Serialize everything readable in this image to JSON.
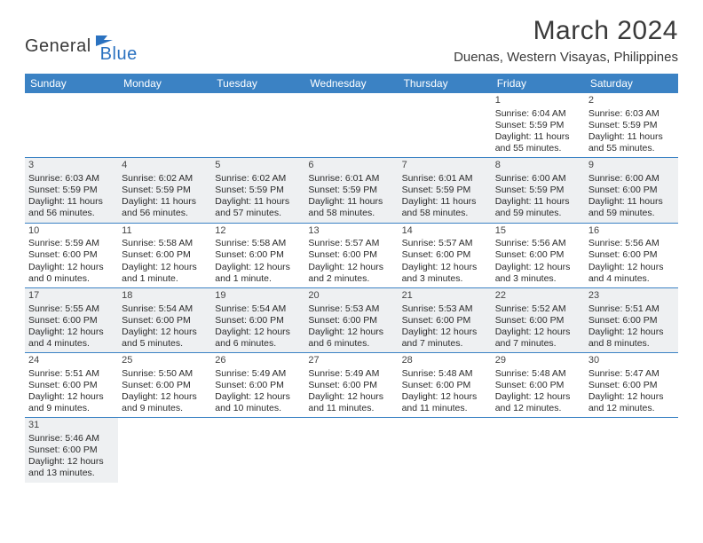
{
  "logo": {
    "part1": "General",
    "part2": "Blue",
    "icon_color": "#2b72c0",
    "text_color": "#3a3a3a"
  },
  "title": "March 2024",
  "location": "Duenas, Western Visayas, Philippines",
  "header_bg": "#3b82c4",
  "header_fg": "#ffffff",
  "row_divider": "#3b82c4",
  "shade_bg": "#eef0f2",
  "weekdays": [
    "Sunday",
    "Monday",
    "Tuesday",
    "Wednesday",
    "Thursday",
    "Friday",
    "Saturday"
  ],
  "weeks": [
    {
      "shaded": false,
      "days": [
        null,
        null,
        null,
        null,
        null,
        {
          "n": "1",
          "sunrise": "Sunrise: 6:04 AM",
          "sunset": "Sunset: 5:59 PM",
          "day1": "Daylight: 11 hours",
          "day2": "and 55 minutes."
        },
        {
          "n": "2",
          "sunrise": "Sunrise: 6:03 AM",
          "sunset": "Sunset: 5:59 PM",
          "day1": "Daylight: 11 hours",
          "day2": "and 55 minutes."
        }
      ]
    },
    {
      "shaded": true,
      "days": [
        {
          "n": "3",
          "sunrise": "Sunrise: 6:03 AM",
          "sunset": "Sunset: 5:59 PM",
          "day1": "Daylight: 11 hours",
          "day2": "and 56 minutes."
        },
        {
          "n": "4",
          "sunrise": "Sunrise: 6:02 AM",
          "sunset": "Sunset: 5:59 PM",
          "day1": "Daylight: 11 hours",
          "day2": "and 56 minutes."
        },
        {
          "n": "5",
          "sunrise": "Sunrise: 6:02 AM",
          "sunset": "Sunset: 5:59 PM",
          "day1": "Daylight: 11 hours",
          "day2": "and 57 minutes."
        },
        {
          "n": "6",
          "sunrise": "Sunrise: 6:01 AM",
          "sunset": "Sunset: 5:59 PM",
          "day1": "Daylight: 11 hours",
          "day2": "and 58 minutes."
        },
        {
          "n": "7",
          "sunrise": "Sunrise: 6:01 AM",
          "sunset": "Sunset: 5:59 PM",
          "day1": "Daylight: 11 hours",
          "day2": "and 58 minutes."
        },
        {
          "n": "8",
          "sunrise": "Sunrise: 6:00 AM",
          "sunset": "Sunset: 5:59 PM",
          "day1": "Daylight: 11 hours",
          "day2": "and 59 minutes."
        },
        {
          "n": "9",
          "sunrise": "Sunrise: 6:00 AM",
          "sunset": "Sunset: 6:00 PM",
          "day1": "Daylight: 11 hours",
          "day2": "and 59 minutes."
        }
      ]
    },
    {
      "shaded": false,
      "days": [
        {
          "n": "10",
          "sunrise": "Sunrise: 5:59 AM",
          "sunset": "Sunset: 6:00 PM",
          "day1": "Daylight: 12 hours",
          "day2": "and 0 minutes."
        },
        {
          "n": "11",
          "sunrise": "Sunrise: 5:58 AM",
          "sunset": "Sunset: 6:00 PM",
          "day1": "Daylight: 12 hours",
          "day2": "and 1 minute."
        },
        {
          "n": "12",
          "sunrise": "Sunrise: 5:58 AM",
          "sunset": "Sunset: 6:00 PM",
          "day1": "Daylight: 12 hours",
          "day2": "and 1 minute."
        },
        {
          "n": "13",
          "sunrise": "Sunrise: 5:57 AM",
          "sunset": "Sunset: 6:00 PM",
          "day1": "Daylight: 12 hours",
          "day2": "and 2 minutes."
        },
        {
          "n": "14",
          "sunrise": "Sunrise: 5:57 AM",
          "sunset": "Sunset: 6:00 PM",
          "day1": "Daylight: 12 hours",
          "day2": "and 3 minutes."
        },
        {
          "n": "15",
          "sunrise": "Sunrise: 5:56 AM",
          "sunset": "Sunset: 6:00 PM",
          "day1": "Daylight: 12 hours",
          "day2": "and 3 minutes."
        },
        {
          "n": "16",
          "sunrise": "Sunrise: 5:56 AM",
          "sunset": "Sunset: 6:00 PM",
          "day1": "Daylight: 12 hours",
          "day2": "and 4 minutes."
        }
      ]
    },
    {
      "shaded": true,
      "days": [
        {
          "n": "17",
          "sunrise": "Sunrise: 5:55 AM",
          "sunset": "Sunset: 6:00 PM",
          "day1": "Daylight: 12 hours",
          "day2": "and 4 minutes."
        },
        {
          "n": "18",
          "sunrise": "Sunrise: 5:54 AM",
          "sunset": "Sunset: 6:00 PM",
          "day1": "Daylight: 12 hours",
          "day2": "and 5 minutes."
        },
        {
          "n": "19",
          "sunrise": "Sunrise: 5:54 AM",
          "sunset": "Sunset: 6:00 PM",
          "day1": "Daylight: 12 hours",
          "day2": "and 6 minutes."
        },
        {
          "n": "20",
          "sunrise": "Sunrise: 5:53 AM",
          "sunset": "Sunset: 6:00 PM",
          "day1": "Daylight: 12 hours",
          "day2": "and 6 minutes."
        },
        {
          "n": "21",
          "sunrise": "Sunrise: 5:53 AM",
          "sunset": "Sunset: 6:00 PM",
          "day1": "Daylight: 12 hours",
          "day2": "and 7 minutes."
        },
        {
          "n": "22",
          "sunrise": "Sunrise: 5:52 AM",
          "sunset": "Sunset: 6:00 PM",
          "day1": "Daylight: 12 hours",
          "day2": "and 7 minutes."
        },
        {
          "n": "23",
          "sunrise": "Sunrise: 5:51 AM",
          "sunset": "Sunset: 6:00 PM",
          "day1": "Daylight: 12 hours",
          "day2": "and 8 minutes."
        }
      ]
    },
    {
      "shaded": false,
      "days": [
        {
          "n": "24",
          "sunrise": "Sunrise: 5:51 AM",
          "sunset": "Sunset: 6:00 PM",
          "day1": "Daylight: 12 hours",
          "day2": "and 9 minutes."
        },
        {
          "n": "25",
          "sunrise": "Sunrise: 5:50 AM",
          "sunset": "Sunset: 6:00 PM",
          "day1": "Daylight: 12 hours",
          "day2": "and 9 minutes."
        },
        {
          "n": "26",
          "sunrise": "Sunrise: 5:49 AM",
          "sunset": "Sunset: 6:00 PM",
          "day1": "Daylight: 12 hours",
          "day2": "and 10 minutes."
        },
        {
          "n": "27",
          "sunrise": "Sunrise: 5:49 AM",
          "sunset": "Sunset: 6:00 PM",
          "day1": "Daylight: 12 hours",
          "day2": "and 11 minutes."
        },
        {
          "n": "28",
          "sunrise": "Sunrise: 5:48 AM",
          "sunset": "Sunset: 6:00 PM",
          "day1": "Daylight: 12 hours",
          "day2": "and 11 minutes."
        },
        {
          "n": "29",
          "sunrise": "Sunrise: 5:48 AM",
          "sunset": "Sunset: 6:00 PM",
          "day1": "Daylight: 12 hours",
          "day2": "and 12 minutes."
        },
        {
          "n": "30",
          "sunrise": "Sunrise: 5:47 AM",
          "sunset": "Sunset: 6:00 PM",
          "day1": "Daylight: 12 hours",
          "day2": "and 12 minutes."
        }
      ]
    },
    {
      "shaded": true,
      "last": true,
      "days": [
        {
          "n": "31",
          "sunrise": "Sunrise: 5:46 AM",
          "sunset": "Sunset: 6:00 PM",
          "day1": "Daylight: 12 hours",
          "day2": "and 13 minutes."
        },
        null,
        null,
        null,
        null,
        null,
        null
      ]
    }
  ]
}
